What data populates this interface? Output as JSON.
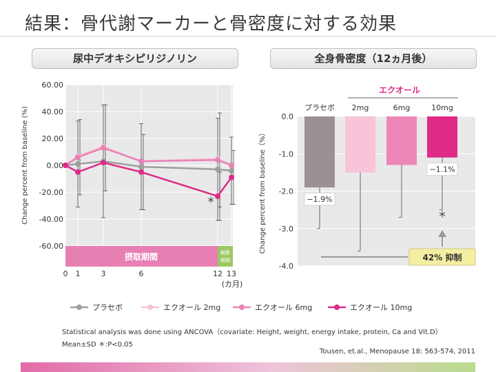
{
  "slide": {
    "title": "結果：骨代謝マーカーと骨密度に対する効果",
    "note_line1": "Statistical analysis was done using ANCOVA（covariate: Height, weight, energy intake, protein, Ca and Vit.D）",
    "note_line2": "Mean±SD  ＊:P<0.05",
    "citation": "Tousen, et.al., Menopause 18: 563-574, 2011"
  },
  "chart_data": [
    {
      "type": "line",
      "title": "尿中デオキシピリジノリン",
      "ylabel": "Change percent from baseline (%)",
      "xlabel": "(カ月)",
      "ylim": [
        -60,
        60
      ],
      "yticks": [
        "60.00",
        "40.00",
        "20.00",
        "0.00",
        "-20.00",
        "-40.00",
        "-60.00"
      ],
      "x": [
        0,
        1,
        3,
        6,
        12,
        13
      ],
      "xtick_labels": [
        "0",
        "1",
        "3",
        "6",
        "12",
        "13"
      ],
      "intake_label": "摂取期間",
      "observation_label_1": "観察",
      "observation_label_2": "期間",
      "significance_mark": "＊",
      "series": [
        {
          "name": "プラセボ",
          "color": "#9e9e9e",
          "values": [
            0,
            1,
            3,
            -1,
            -3,
            -4
          ],
          "errors": [
            0,
            32,
            42,
            32,
            38,
            25
          ]
        },
        {
          "name": "エクオール 2mg",
          "color": "#f6c3d8",
          "values": [
            0,
            7,
            14,
            3,
            5,
            0
          ],
          "errors": [
            0,
            0,
            0,
            0,
            0,
            0
          ]
        },
        {
          "name": "エクオール 6mg",
          "color": "#e882b4",
          "values": [
            0,
            6,
            13,
            3,
            4,
            0
          ],
          "errors": [
            0,
            28,
            32,
            0,
            35,
            0
          ]
        },
        {
          "name": "エクオール 10mg",
          "color": "#de2a87",
          "values": [
            0,
            -5,
            2,
            -5,
            -23,
            -9
          ],
          "errors": [
            0,
            0,
            0,
            28,
            18,
            20
          ]
        }
      ]
    },
    {
      "type": "bar",
      "title": "全身骨密度（12ヵ月後）",
      "ylabel": "Change percent from baseline（%）",
      "ylim": [
        -4.0,
        0.0
      ],
      "yticks": [
        "0.0",
        "-1.0",
        "-2.0",
        "-3.0",
        "-4.0"
      ],
      "group_label": "エクオール",
      "categories": [
        "プラセボ",
        "2mg",
        "6mg",
        "10mg"
      ],
      "values": [
        -1.9,
        -1.5,
        -1.3,
        -1.1
      ],
      "value_labels": [
        "−1.9%",
        "",
        "",
        "−1.1%"
      ],
      "errors": [
        1.1,
        2.1,
        1.4,
        1.4
      ],
      "colors": [
        "#9a9292",
        "#f7c4da",
        "#ec87b8",
        "#df2a88"
      ],
      "significance_mark": "＊",
      "suppression_label": "42% 抑制"
    }
  ]
}
